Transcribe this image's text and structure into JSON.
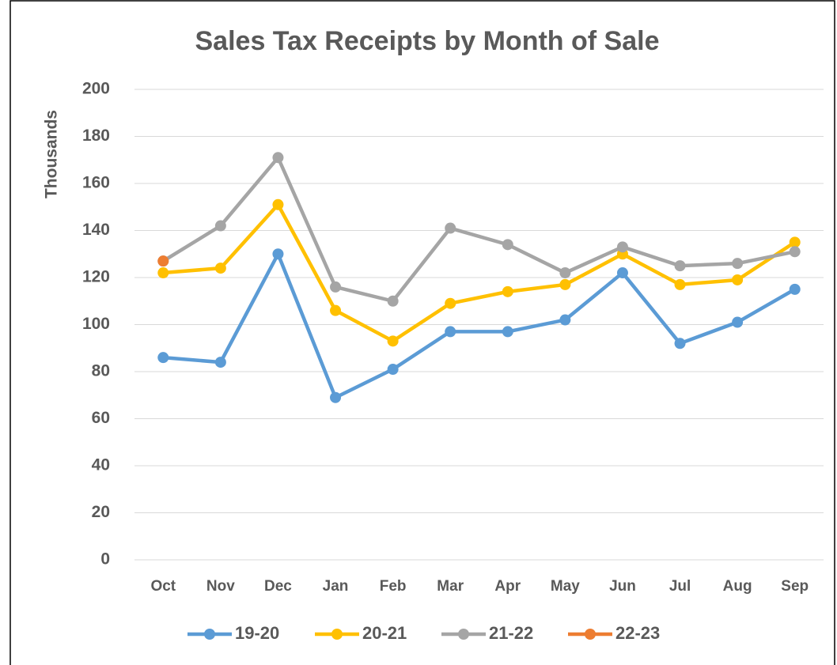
{
  "chart_data": {
    "type": "line",
    "title": "Sales Tax Receipts by Month of Sale",
    "y_label": "Thousands",
    "categories": [
      "Oct",
      "Nov",
      "Dec",
      "Jan",
      "Feb",
      "Mar",
      "Apr",
      "May",
      "Jun",
      "Jul",
      "Aug",
      "Sep"
    ],
    "series": [
      {
        "name": "19-20",
        "color": "#5b9bd5",
        "values": [
          86,
          84,
          130,
          69,
          81,
          97,
          97,
          102,
          122,
          92,
          101,
          115
        ]
      },
      {
        "name": "20-21",
        "color": "#ffc000",
        "values": [
          122,
          124,
          151,
          106,
          93,
          109,
          114,
          117,
          130,
          117,
          119,
          135
        ]
      },
      {
        "name": "21-22",
        "color": "#a5a5a5",
        "values": [
          127,
          142,
          171,
          116,
          110,
          141,
          134,
          122,
          133,
          125,
          126,
          131
        ]
      },
      {
        "name": "22-23",
        "color": "#ed7d31",
        "values": [
          127,
          null,
          null,
          null,
          null,
          null,
          null,
          null,
          null,
          null,
          null,
          null
        ]
      }
    ],
    "ylim": [
      0,
      200
    ],
    "yticks": [
      0,
      20,
      40,
      60,
      80,
      100,
      120,
      140,
      160,
      180,
      200
    ],
    "grid": true,
    "legend": "bottom"
  }
}
